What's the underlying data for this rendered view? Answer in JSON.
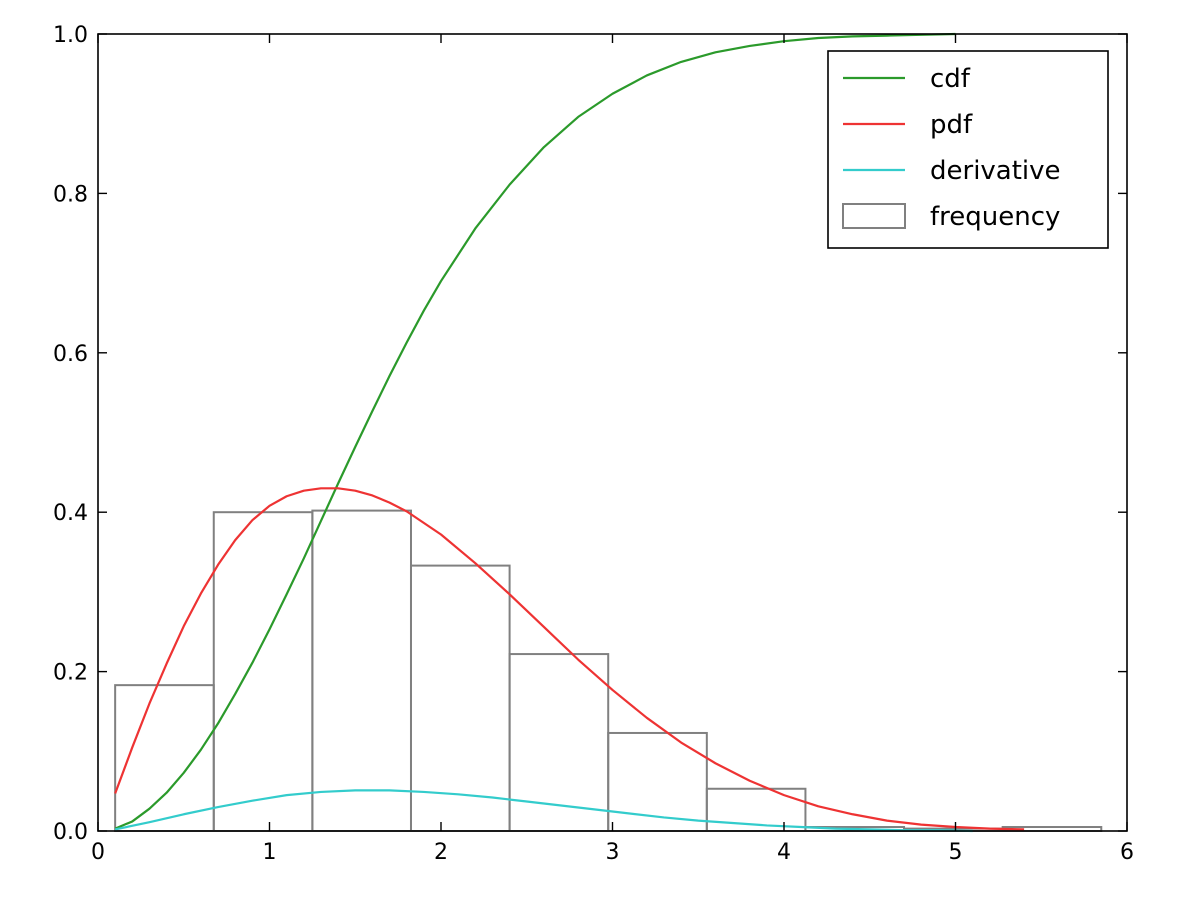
{
  "chart_data": {
    "type": "line",
    "xlim": [
      0,
      6
    ],
    "ylim": [
      0,
      1.0
    ],
    "xticks": [
      0,
      1,
      2,
      3,
      4,
      5,
      6
    ],
    "xtick_labels": [
      "0",
      "1",
      "2",
      "3",
      "4",
      "5",
      "6"
    ],
    "yticks": [
      0,
      0.2,
      0.4,
      0.6,
      0.8,
      1.0
    ],
    "ytick_labels": [
      "0.0",
      "0.2",
      "0.4",
      "0.6",
      "0.8",
      "1.0"
    ],
    "grid": false,
    "legend_position": "top-right",
    "series": [
      {
        "name": "cdf",
        "kind": "line",
        "color": "#2b9a2b",
        "x": [
          0.1,
          0.2,
          0.3,
          0.4,
          0.5,
          0.6,
          0.7,
          0.8,
          0.9,
          1.0,
          1.1,
          1.2,
          1.3,
          1.4,
          1.5,
          1.6,
          1.7,
          1.8,
          1.9,
          2.0,
          2.2,
          2.4,
          2.6,
          2.8,
          3.0,
          3.2,
          3.4,
          3.6,
          3.8,
          4.0,
          4.2,
          4.4,
          4.6,
          4.8,
          5.0
        ],
        "y": [
          0.003,
          0.012,
          0.028,
          0.048,
          0.073,
          0.102,
          0.135,
          0.172,
          0.211,
          0.253,
          0.297,
          0.342,
          0.389,
          0.436,
          0.482,
          0.527,
          0.571,
          0.613,
          0.653,
          0.69,
          0.756,
          0.811,
          0.858,
          0.896,
          0.925,
          0.948,
          0.965,
          0.977,
          0.985,
          0.991,
          0.995,
          0.997,
          0.998,
          0.999,
          1.0
        ]
      },
      {
        "name": "pdf",
        "kind": "line",
        "color": "#ee3333",
        "x": [
          0.1,
          0.2,
          0.3,
          0.4,
          0.5,
          0.6,
          0.7,
          0.8,
          0.9,
          1.0,
          1.1,
          1.2,
          1.3,
          1.4,
          1.5,
          1.6,
          1.7,
          1.8,
          2.0,
          2.2,
          2.4,
          2.6,
          2.8,
          3.0,
          3.2,
          3.4,
          3.6,
          3.8,
          4.0,
          4.2,
          4.4,
          4.6,
          4.8,
          5.0,
          5.2,
          5.4
        ],
        "y": [
          0.047,
          0.105,
          0.16,
          0.21,
          0.257,
          0.298,
          0.334,
          0.365,
          0.39,
          0.408,
          0.42,
          0.427,
          0.43,
          0.43,
          0.427,
          0.421,
          0.412,
          0.401,
          0.372,
          0.336,
          0.297,
          0.256,
          0.215,
          0.177,
          0.142,
          0.111,
          0.085,
          0.063,
          0.045,
          0.031,
          0.021,
          0.013,
          0.008,
          0.005,
          0.003,
          0.002
        ]
      },
      {
        "name": "derivative",
        "kind": "line",
        "color": "#33cccc",
        "x": [
          0.1,
          0.3,
          0.5,
          0.7,
          0.9,
          1.1,
          1.3,
          1.5,
          1.7,
          1.9,
          2.1,
          2.3,
          2.5,
          2.7,
          2.9,
          3.1,
          3.3,
          3.5,
          3.7,
          3.9,
          4.1,
          4.3,
          4.5,
          4.7,
          4.9,
          5.1
        ],
        "y": [
          0.002,
          0.011,
          0.021,
          0.03,
          0.038,
          0.045,
          0.049,
          0.051,
          0.051,
          0.049,
          0.046,
          0.042,
          0.037,
          0.032,
          0.027,
          0.022,
          0.017,
          0.013,
          0.01,
          0.007,
          0.005,
          0.003,
          0.002,
          0.001,
          0.001,
          0.0
        ]
      }
    ],
    "histogram": {
      "name": "frequency",
      "color": "#808080",
      "bin_edges": [
        0.1,
        0.675,
        1.25,
        1.825,
        2.4,
        2.975,
        3.55,
        4.125,
        4.7,
        5.275,
        5.85
      ],
      "values": [
        0.183,
        0.4,
        0.402,
        0.333,
        0.222,
        0.123,
        0.053,
        0.005,
        0.003,
        0.005
      ]
    },
    "legend": [
      {
        "label": "cdf",
        "kind": "line",
        "color": "#2b9a2b"
      },
      {
        "label": "pdf",
        "kind": "line",
        "color": "#ee3333"
      },
      {
        "label": "derivative",
        "kind": "line",
        "color": "#33cccc"
      },
      {
        "label": "frequency",
        "kind": "patch",
        "color": "#808080"
      }
    ]
  }
}
